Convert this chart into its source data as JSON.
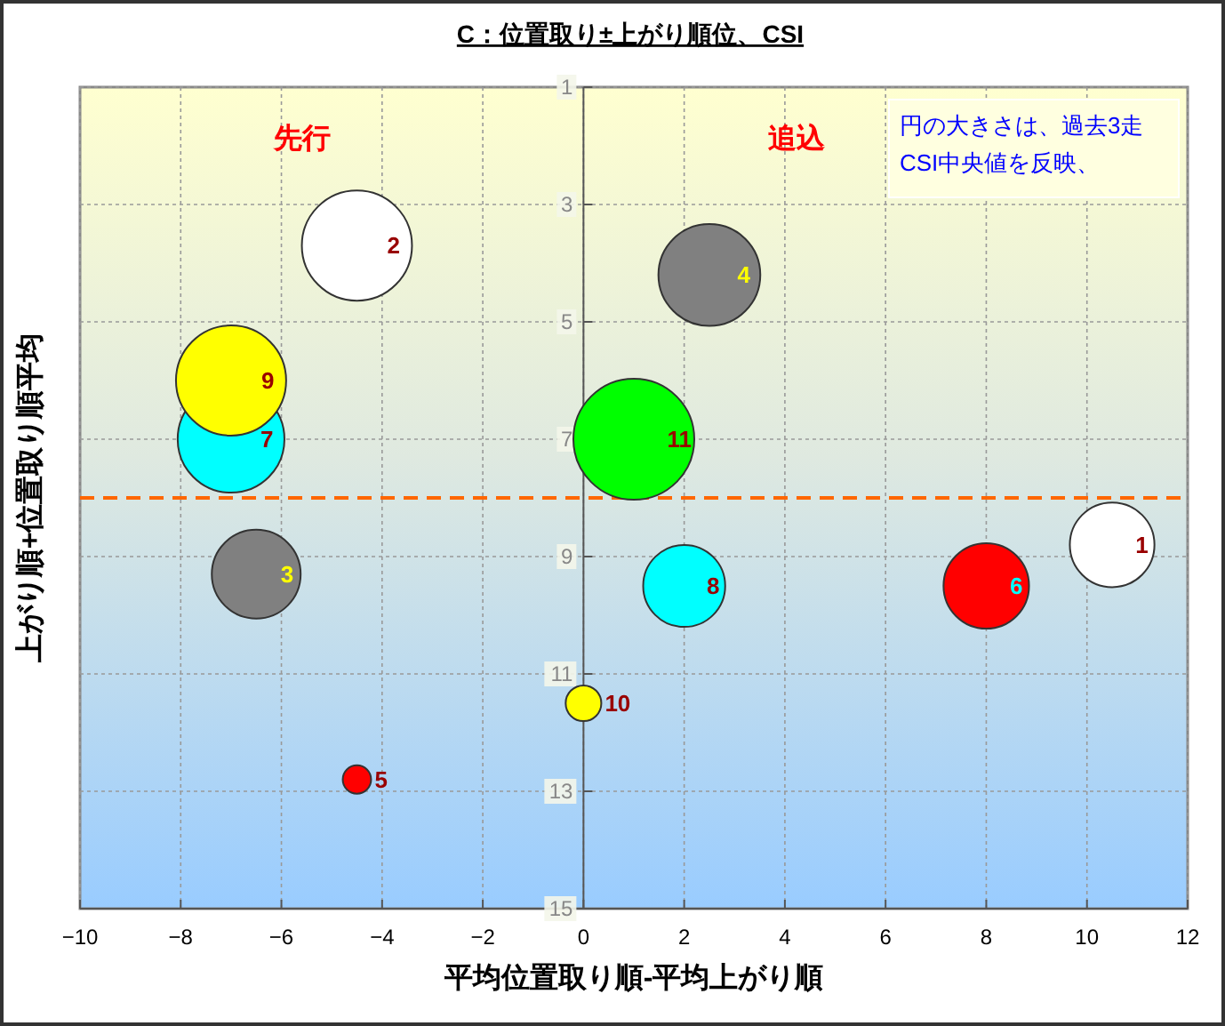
{
  "chart_data": {
    "type": "bubble",
    "title": "C：位置取り±上がり順位、CSI",
    "xlabel": "平均位置取り順-平均上がり順",
    "ylabel": "上がり順+位置取り順平均",
    "annotations": [
      "先行",
      "追込",
      "円の大きさは、過去3走CSI中央値を反映、",
      {
        "text": "1",
        "x": 10.5,
        "y": 8.8
      },
      {
        "text": "2",
        "x": -4.5,
        "y": 3.7
      },
      {
        "text": "3",
        "x": -6.5,
        "y": 9.3
      },
      {
        "text": "4",
        "x": 2.5,
        "y": 4.2
      },
      {
        "text": "5",
        "x": -4.5,
        "y": 12.8
      },
      {
        "text": "6",
        "x": 8.0,
        "y": 9.5
      },
      {
        "text": "7",
        "x": -7.0,
        "y": 7.0
      },
      {
        "text": "8",
        "x": 2.0,
        "y": 9.5
      },
      {
        "text": "9",
        "x": -7.0,
        "y": 6.0
      },
      {
        "text": "10",
        "x": 0.0,
        "y": 11.5
      },
      {
        "text": "11",
        "x": 1.0,
        "y": 7.0
      }
    ],
    "x": [
      10.5,
      -4.5,
      -6.5,
      2.5,
      -4.5,
      8.0,
      -7.0,
      2.0,
      -7.0,
      0.0,
      1.0
    ],
    "values": [
      8.8,
      3.7,
      9.3,
      4.2,
      12.8,
      9.5,
      7.0,
      9.5,
      6.0,
      11.5,
      7.0
    ],
    "sizes": [
      0.49,
      0.83,
      0.54,
      0.71,
      0.055,
      0.5,
      0.78,
      0.46,
      0.83,
      0.087,
      1
    ],
    "colors": [
      "#ffffff",
      "#ffffff",
      "#808080",
      "#808080",
      "#ff0000",
      "#ff0000",
      "#00ffff",
      "#00ffff",
      "#ffff00",
      "#ffff00",
      "#00ff00"
    ],
    "xlim": [
      -10,
      12
    ],
    "xticks": [
      -10,
      -8,
      -6,
      -4,
      -2,
      0,
      2,
      4,
      6,
      8,
      10,
      12
    ],
    "ylim": [
      15,
      1
    ],
    "yticks": [
      1,
      3,
      5,
      7,
      9,
      11,
      13,
      15
    ],
    "grid": true,
    "ref_lines": [
      {
        "axis": "y",
        "value": 8,
        "color": "#ff6600",
        "line_style": "dashed"
      }
    ]
  }
}
